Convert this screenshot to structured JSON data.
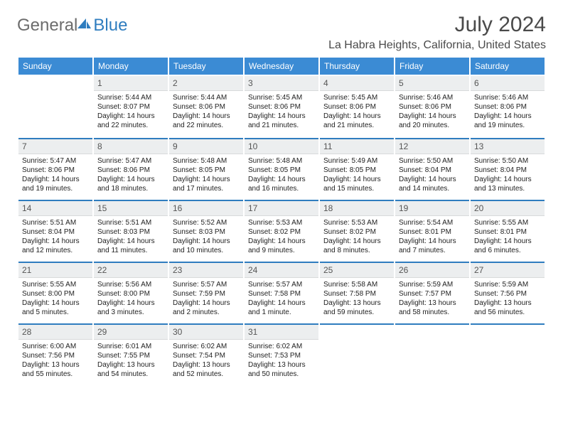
{
  "brand": {
    "word1": "General",
    "word2": "Blue"
  },
  "header": {
    "month": "July 2024",
    "location": "La Habra Heights, California, United States"
  },
  "columns": [
    "Sunday",
    "Monday",
    "Tuesday",
    "Wednesday",
    "Thursday",
    "Friday",
    "Saturday"
  ],
  "colors": {
    "header_bg": "#3b8bd4",
    "day_bg": "#eceeef",
    "rule": "#2f7dbf"
  },
  "weeks": [
    [
      null,
      {
        "n": "1",
        "sr": "Sunrise: 5:44 AM",
        "ss": "Sunset: 8:07 PM",
        "dl1": "Daylight: 14 hours",
        "dl2": "and 22 minutes."
      },
      {
        "n": "2",
        "sr": "Sunrise: 5:44 AM",
        "ss": "Sunset: 8:06 PM",
        "dl1": "Daylight: 14 hours",
        "dl2": "and 22 minutes."
      },
      {
        "n": "3",
        "sr": "Sunrise: 5:45 AM",
        "ss": "Sunset: 8:06 PM",
        "dl1": "Daylight: 14 hours",
        "dl2": "and 21 minutes."
      },
      {
        "n": "4",
        "sr": "Sunrise: 5:45 AM",
        "ss": "Sunset: 8:06 PM",
        "dl1": "Daylight: 14 hours",
        "dl2": "and 21 minutes."
      },
      {
        "n": "5",
        "sr": "Sunrise: 5:46 AM",
        "ss": "Sunset: 8:06 PM",
        "dl1": "Daylight: 14 hours",
        "dl2": "and 20 minutes."
      },
      {
        "n": "6",
        "sr": "Sunrise: 5:46 AM",
        "ss": "Sunset: 8:06 PM",
        "dl1": "Daylight: 14 hours",
        "dl2": "and 19 minutes."
      }
    ],
    [
      {
        "n": "7",
        "sr": "Sunrise: 5:47 AM",
        "ss": "Sunset: 8:06 PM",
        "dl1": "Daylight: 14 hours",
        "dl2": "and 19 minutes."
      },
      {
        "n": "8",
        "sr": "Sunrise: 5:47 AM",
        "ss": "Sunset: 8:06 PM",
        "dl1": "Daylight: 14 hours",
        "dl2": "and 18 minutes."
      },
      {
        "n": "9",
        "sr": "Sunrise: 5:48 AM",
        "ss": "Sunset: 8:05 PM",
        "dl1": "Daylight: 14 hours",
        "dl2": "and 17 minutes."
      },
      {
        "n": "10",
        "sr": "Sunrise: 5:48 AM",
        "ss": "Sunset: 8:05 PM",
        "dl1": "Daylight: 14 hours",
        "dl2": "and 16 minutes."
      },
      {
        "n": "11",
        "sr": "Sunrise: 5:49 AM",
        "ss": "Sunset: 8:05 PM",
        "dl1": "Daylight: 14 hours",
        "dl2": "and 15 minutes."
      },
      {
        "n": "12",
        "sr": "Sunrise: 5:50 AM",
        "ss": "Sunset: 8:04 PM",
        "dl1": "Daylight: 14 hours",
        "dl2": "and 14 minutes."
      },
      {
        "n": "13",
        "sr": "Sunrise: 5:50 AM",
        "ss": "Sunset: 8:04 PM",
        "dl1": "Daylight: 14 hours",
        "dl2": "and 13 minutes."
      }
    ],
    [
      {
        "n": "14",
        "sr": "Sunrise: 5:51 AM",
        "ss": "Sunset: 8:04 PM",
        "dl1": "Daylight: 14 hours",
        "dl2": "and 12 minutes."
      },
      {
        "n": "15",
        "sr": "Sunrise: 5:51 AM",
        "ss": "Sunset: 8:03 PM",
        "dl1": "Daylight: 14 hours",
        "dl2": "and 11 minutes."
      },
      {
        "n": "16",
        "sr": "Sunrise: 5:52 AM",
        "ss": "Sunset: 8:03 PM",
        "dl1": "Daylight: 14 hours",
        "dl2": "and 10 minutes."
      },
      {
        "n": "17",
        "sr": "Sunrise: 5:53 AM",
        "ss": "Sunset: 8:02 PM",
        "dl1": "Daylight: 14 hours",
        "dl2": "and 9 minutes."
      },
      {
        "n": "18",
        "sr": "Sunrise: 5:53 AM",
        "ss": "Sunset: 8:02 PM",
        "dl1": "Daylight: 14 hours",
        "dl2": "and 8 minutes."
      },
      {
        "n": "19",
        "sr": "Sunrise: 5:54 AM",
        "ss": "Sunset: 8:01 PM",
        "dl1": "Daylight: 14 hours",
        "dl2": "and 7 minutes."
      },
      {
        "n": "20",
        "sr": "Sunrise: 5:55 AM",
        "ss": "Sunset: 8:01 PM",
        "dl1": "Daylight: 14 hours",
        "dl2": "and 6 minutes."
      }
    ],
    [
      {
        "n": "21",
        "sr": "Sunrise: 5:55 AM",
        "ss": "Sunset: 8:00 PM",
        "dl1": "Daylight: 14 hours",
        "dl2": "and 5 minutes."
      },
      {
        "n": "22",
        "sr": "Sunrise: 5:56 AM",
        "ss": "Sunset: 8:00 PM",
        "dl1": "Daylight: 14 hours",
        "dl2": "and 3 minutes."
      },
      {
        "n": "23",
        "sr": "Sunrise: 5:57 AM",
        "ss": "Sunset: 7:59 PM",
        "dl1": "Daylight: 14 hours",
        "dl2": "and 2 minutes."
      },
      {
        "n": "24",
        "sr": "Sunrise: 5:57 AM",
        "ss": "Sunset: 7:58 PM",
        "dl1": "Daylight: 14 hours",
        "dl2": "and 1 minute."
      },
      {
        "n": "25",
        "sr": "Sunrise: 5:58 AM",
        "ss": "Sunset: 7:58 PM",
        "dl1": "Daylight: 13 hours",
        "dl2": "and 59 minutes."
      },
      {
        "n": "26",
        "sr": "Sunrise: 5:59 AM",
        "ss": "Sunset: 7:57 PM",
        "dl1": "Daylight: 13 hours",
        "dl2": "and 58 minutes."
      },
      {
        "n": "27",
        "sr": "Sunrise: 5:59 AM",
        "ss": "Sunset: 7:56 PM",
        "dl1": "Daylight: 13 hours",
        "dl2": "and 56 minutes."
      }
    ],
    [
      {
        "n": "28",
        "sr": "Sunrise: 6:00 AM",
        "ss": "Sunset: 7:56 PM",
        "dl1": "Daylight: 13 hours",
        "dl2": "and 55 minutes."
      },
      {
        "n": "29",
        "sr": "Sunrise: 6:01 AM",
        "ss": "Sunset: 7:55 PM",
        "dl1": "Daylight: 13 hours",
        "dl2": "and 54 minutes."
      },
      {
        "n": "30",
        "sr": "Sunrise: 6:02 AM",
        "ss": "Sunset: 7:54 PM",
        "dl1": "Daylight: 13 hours",
        "dl2": "and 52 minutes."
      },
      {
        "n": "31",
        "sr": "Sunrise: 6:02 AM",
        "ss": "Sunset: 7:53 PM",
        "dl1": "Daylight: 13 hours",
        "dl2": "and 50 minutes."
      },
      null,
      null,
      null
    ]
  ]
}
